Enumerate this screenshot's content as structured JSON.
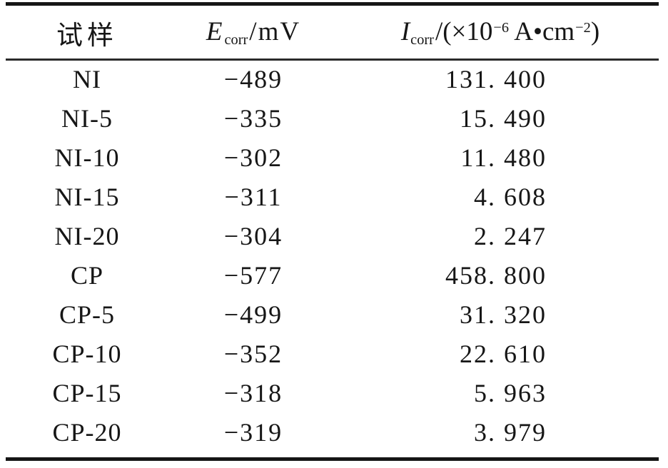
{
  "page": {
    "background_color": "#ffffff",
    "text_color": "#161616",
    "rule_color": "#161616"
  },
  "table": {
    "header": {
      "sample_label": "试样",
      "e_col": {
        "symbol": "E",
        "subscript": "corr",
        "unit": "/mV"
      },
      "i_col": {
        "symbol": "I",
        "subscript": "corr",
        "open": "/(×10",
        "exponent1": "−6",
        "mid": " A•cm",
        "exponent2": "−2",
        "close": ")"
      }
    },
    "rows": [
      {
        "sample": "NI",
        "e_corr": "−489",
        "i_corr": "131. 400"
      },
      {
        "sample": "NI-5",
        "e_corr": "−335",
        "i_corr": "15. 490"
      },
      {
        "sample": "NI-10",
        "e_corr": "−302",
        "i_corr": "11. 480"
      },
      {
        "sample": "NI-15",
        "e_corr": "−311",
        "i_corr": "4. 608"
      },
      {
        "sample": "NI-20",
        "e_corr": "−304",
        "i_corr": "2. 247"
      },
      {
        "sample": "CP",
        "e_corr": "−577",
        "i_corr": "458. 800"
      },
      {
        "sample": "CP-5",
        "e_corr": "−499",
        "i_corr": "31. 320"
      },
      {
        "sample": "CP-10",
        "e_corr": "−352",
        "i_corr": "22. 610"
      },
      {
        "sample": "CP-15",
        "e_corr": "−318",
        "i_corr": "5. 963"
      },
      {
        "sample": "CP-20",
        "e_corr": "−319",
        "i_corr": "3. 979"
      }
    ]
  }
}
